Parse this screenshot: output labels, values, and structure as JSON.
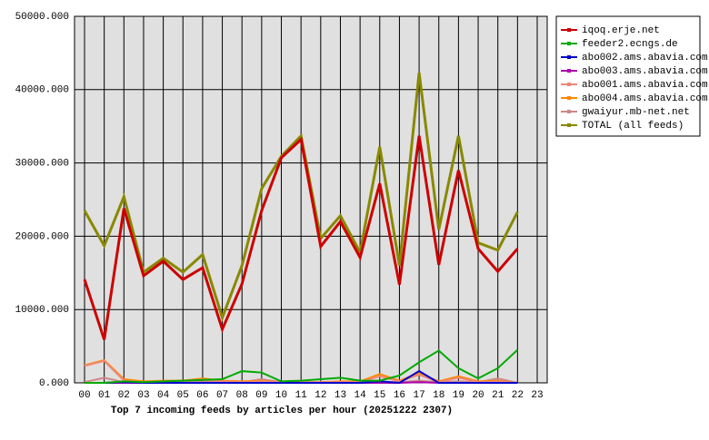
{
  "chart_data": {
    "type": "line",
    "title": "Top 7 incoming feeds by articles per hour (20251222 2307)",
    "categories": [
      "00",
      "01",
      "02",
      "03",
      "04",
      "05",
      "06",
      "07",
      "08",
      "09",
      "10",
      "11",
      "12",
      "13",
      "14",
      "15",
      "16",
      "17",
      "18",
      "19",
      "20",
      "21",
      "22",
      "23"
    ],
    "ylim": [
      0,
      50000
    ],
    "yticks": [
      {
        "value": 0,
        "label": "0.000"
      },
      {
        "value": 10000,
        "label": "10000.000"
      },
      {
        "value": 20000,
        "label": "20000.000"
      },
      {
        "value": 30000,
        "label": "30000.000"
      },
      {
        "value": 40000,
        "label": "40000.000"
      },
      {
        "value": 50000,
        "label": "50000.000"
      }
    ],
    "grid": true,
    "legend": "right",
    "series": [
      {
        "name": "iqoq.erje.net",
        "color": "#cc0000",
        "values": [
          14100,
          5900,
          23800,
          14600,
          16600,
          14100,
          15700,
          7300,
          13500,
          23500,
          30700,
          33200,
          18600,
          22000,
          17100,
          27200,
          13400,
          33700,
          16100,
          29000,
          18300,
          15200,
          18300,
          null
        ]
      },
      {
        "name": "feeder2.ecngs.de",
        "color": "#00aa00",
        "values": [
          0,
          0,
          200,
          100,
          200,
          300,
          400,
          500,
          1600,
          1400,
          200,
          300,
          500,
          700,
          300,
          300,
          1000,
          2800,
          4400,
          2000,
          600,
          2000,
          4500,
          null
        ]
      },
      {
        "name": "abo002.ams.abavia.com",
        "color": "#0000cc",
        "values": [
          0,
          0,
          100,
          0,
          0,
          0,
          0,
          0,
          0,
          0,
          0,
          0,
          0,
          0,
          0,
          200,
          0,
          1600,
          0,
          0,
          0,
          0,
          0,
          null
        ]
      },
      {
        "name": "abo003.ams.abavia.com",
        "color": "#aa00aa",
        "values": [
          0,
          0,
          0,
          0,
          0,
          0,
          0,
          0,
          0,
          0,
          0,
          0,
          0,
          0,
          0,
          0,
          0,
          100,
          0,
          0,
          0,
          0,
          0,
          null
        ]
      },
      {
        "name": "abo001.ams.abavia.com",
        "color": "#ee8877",
        "values": [
          2300,
          3000,
          300,
          100,
          200,
          200,
          400,
          200,
          100,
          200,
          100,
          100,
          100,
          100,
          100,
          900,
          200,
          1100,
          100,
          700,
          100,
          200,
          0,
          null
        ]
      },
      {
        "name": "abo004.ams.abavia.com",
        "color": "#ff8800",
        "values": [
          2400,
          3100,
          500,
          200,
          300,
          300,
          600,
          300,
          200,
          300,
          100,
          100,
          100,
          200,
          200,
          1200,
          300,
          1300,
          200,
          900,
          200,
          300,
          0,
          null
        ]
      },
      {
        "name": "gwaiyur.mb-net.net",
        "color": "#cc8888",
        "values": [
          100,
          700,
          100,
          100,
          100,
          100,
          200,
          100,
          100,
          500,
          100,
          100,
          100,
          100,
          100,
          100,
          100,
          300,
          100,
          200,
          100,
          600,
          0,
          null
        ]
      },
      {
        "name": "TOTAL (all feeds)",
        "color": "#888800",
        "values": [
          23500,
          18700,
          25400,
          15100,
          17000,
          15100,
          17500,
          8900,
          16000,
          26500,
          30900,
          33700,
          19700,
          22800,
          17800,
          32200,
          16000,
          42300,
          20900,
          33700,
          19100,
          18100,
          23300,
          null
        ]
      }
    ]
  }
}
